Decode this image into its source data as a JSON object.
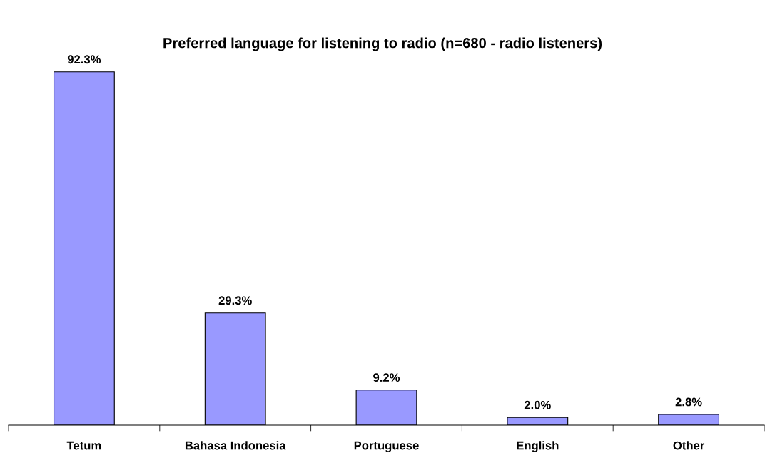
{
  "chart_data": {
    "type": "bar",
    "title": "Preferred language for listening to radio (n=680 - radio listeners)",
    "categories": [
      "Tetum",
      "Bahasa Indonesia",
      "Portuguese",
      "English",
      "Other"
    ],
    "values": [
      92.3,
      29.3,
      9.2,
      2.0,
      2.8
    ],
    "value_labels": [
      "92.3%",
      "29.3%",
      "9.2%",
      "2.0%",
      "2.8%"
    ],
    "color": "#9999ff",
    "tick_labels": "x",
    "grid": false,
    "legend": false
  }
}
